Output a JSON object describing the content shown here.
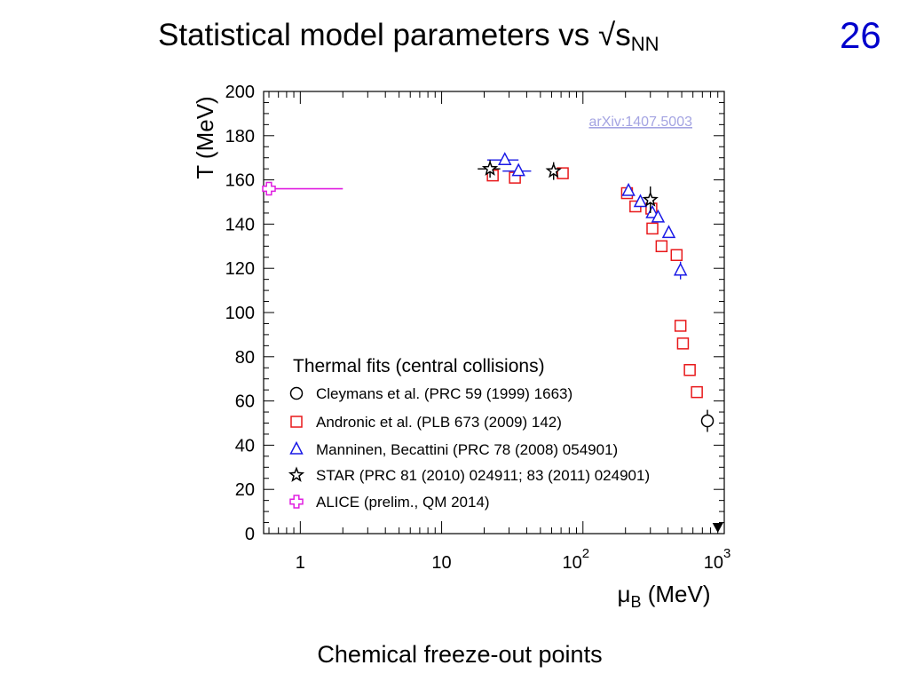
{
  "slide": {
    "title_main": "Statistical model parameters vs √s",
    "title_sub": "NN",
    "page_number": "26",
    "caption": "Chemical freeze-out points"
  },
  "chart_data": {
    "type": "scatter",
    "title": "",
    "xlabel": "μB (MeV)",
    "ylabel": "T (MeV)",
    "x_scale": "log",
    "xlim": [
      0.55,
      1000
    ],
    "ylim": [
      0,
      200
    ],
    "x_tick_labels": [
      "1",
      "10",
      "10^2",
      "10^3"
    ],
    "y_ticks": [
      0,
      20,
      40,
      60,
      80,
      100,
      120,
      140,
      160,
      180,
      200
    ],
    "reference_link": "arXiv:1407.5003",
    "legend": {
      "title": "Thermal fits (central collisions)",
      "placement": "bottom-left",
      "entries": [
        "Cleymans et al. (PRC 59 (1999) 1663)",
        "Andronic et al. (PLB 673 (2009) 142)",
        "Manninen, Becattini (PRC 78 (2008) 054901)",
        "STAR (PRC 81 (2010) 024911; 83 (2011) 024901)",
        "ALICE (prelim., QM 2014)"
      ]
    },
    "series": [
      {
        "name": "Cleymans et al. (PRC 59 (1999) 1663)",
        "marker": "circle",
        "color": "#000000",
        "points": [
          {
            "x": 760,
            "y": 51,
            "yerr": 5
          }
        ]
      },
      {
        "name": "Andronic et al. (PLB 673 (2009) 142)",
        "marker": "square",
        "color": "#e8181a",
        "points": [
          {
            "x": 23,
            "y": 162
          },
          {
            "x": 33,
            "y": 161
          },
          {
            "x": 72,
            "y": 163
          },
          {
            "x": 205,
            "y": 154
          },
          {
            "x": 235,
            "y": 148
          },
          {
            "x": 305,
            "y": 147
          },
          {
            "x": 310,
            "y": 138
          },
          {
            "x": 360,
            "y": 130
          },
          {
            "x": 460,
            "y": 126
          },
          {
            "x": 490,
            "y": 94
          },
          {
            "x": 510,
            "y": 86
          },
          {
            "x": 570,
            "y": 74
          },
          {
            "x": 640,
            "y": 64
          }
        ]
      },
      {
        "name": "Manninen, Becattini (PRC 78 (2008) 054901)",
        "marker": "triangle",
        "color": "#1a1ae6",
        "points": [
          {
            "x": 28,
            "y": 169,
            "xerr": 7
          },
          {
            "x": 35,
            "y": 164,
            "xerr": 8
          },
          {
            "x": 210,
            "y": 155
          },
          {
            "x": 255,
            "y": 150
          },
          {
            "x": 310,
            "y": 145
          },
          {
            "x": 340,
            "y": 143
          },
          {
            "x": 405,
            "y": 136
          },
          {
            "x": 490,
            "y": 119,
            "yerr": 4
          }
        ]
      },
      {
        "name": "STAR (PRC 81 (2010) 024911; 83 (2011) 024901)",
        "marker": "star",
        "color": "#000000",
        "points": [
          {
            "x": 22,
            "y": 165,
            "xerr": 4,
            "yerr": 4
          },
          {
            "x": 62,
            "y": 164,
            "yerr": 4
          },
          {
            "x": 300,
            "y": 151,
            "yerr": 6
          }
        ]
      },
      {
        "name": "ALICE (prelim., QM 2014)",
        "marker": "cross",
        "color": "#e01ee0",
        "points": [
          {
            "x": 0.6,
            "y": 156,
            "x_band": [
              0.55,
              2.0
            ]
          }
        ]
      }
    ],
    "annotations": [
      {
        "type": "arrow-down-marker",
        "x": 900,
        "y": 0,
        "color": "#000000"
      }
    ]
  }
}
